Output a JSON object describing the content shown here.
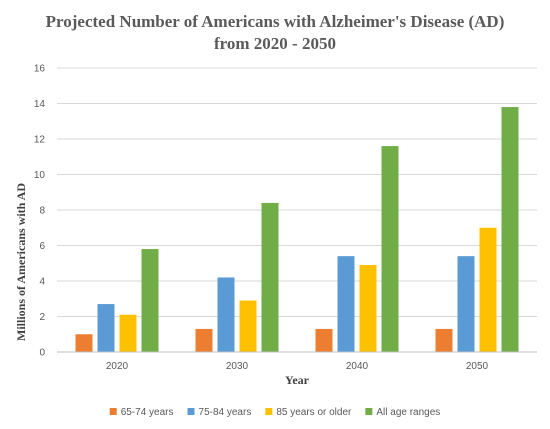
{
  "chart_data": {
    "type": "bar",
    "title": "Projected Number of Americans with Alzheimer's Disease (AD)",
    "subtitle": "from 2020 - 2050",
    "xlabel": "Year",
    "ylabel": "Millions of Americans with AD",
    "categories": [
      "2020",
      "2030",
      "2040",
      "2050"
    ],
    "ylim": [
      0,
      16
    ],
    "yticks": [
      0,
      2,
      4,
      6,
      8,
      10,
      12,
      14,
      16
    ],
    "grid": true,
    "legend_position": "bottom",
    "series": [
      {
        "name": "65-74 years",
        "color": "#ed7d31",
        "values": [
          1.0,
          1.3,
          1.3,
          1.3
        ]
      },
      {
        "name": "75-84 years",
        "color": "#5b9bd5",
        "values": [
          2.7,
          4.2,
          5.4,
          5.4
        ]
      },
      {
        "name": "85 years or older",
        "color": "#ffc000",
        "values": [
          2.1,
          2.9,
          4.9,
          7.0
        ]
      },
      {
        "name": "All age ranges",
        "color": "#70ad47",
        "values": [
          5.8,
          8.4,
          11.6,
          13.8
        ]
      }
    ]
  }
}
